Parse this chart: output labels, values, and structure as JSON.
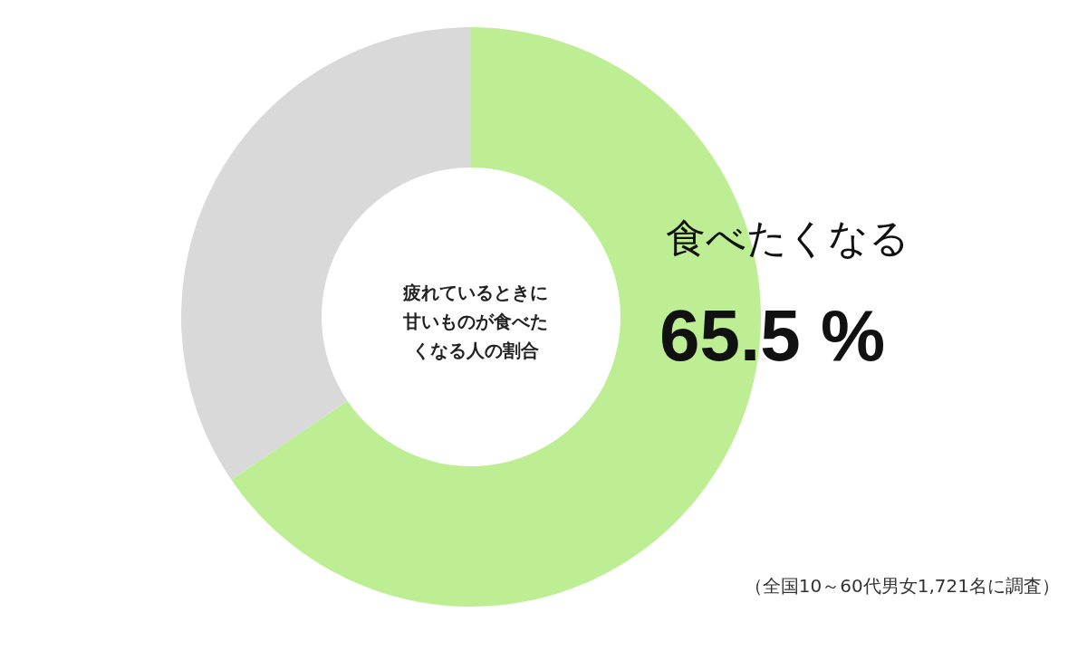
{
  "chart_data": {
    "type": "donut",
    "title": "疲れているときに甘いものが食べたくなる人の割合",
    "categories": [
      "食べたくなる",
      null
    ],
    "values": [
      65.5,
      34.5
    ],
    "colors": [
      "#bdee94",
      "#d9d9d9"
    ],
    "value_labels": [
      "65.5 %",
      null
    ],
    "legend": false,
    "annotations": [
      "（全国10～60代男女1,721名に調査）"
    ]
  }
}
